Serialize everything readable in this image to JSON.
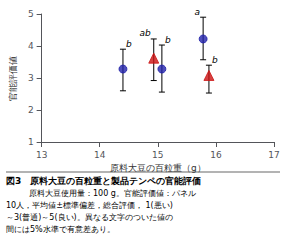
{
  "chart_data": {
    "type": "scatter",
    "title": "図3　原料大豆の百粒重と製品テンペの官能評価",
    "caption": [
      "原料大豆使用量：100 g。官能評価値：パネル",
      "10人，平均値±標準偏差，総合評価， 1(悪い)",
      "～3(普通)～5(良い)。異なる文字のついた値の",
      "間には5%水準で有意差あり。"
    ],
    "xlabel": "原料大豆の百粒重（g）",
    "ylabel": "官能評価値",
    "xlim": [
      13,
      17
    ],
    "ylim": [
      1,
      5
    ],
    "xticks": [
      13,
      14,
      15,
      16,
      17
    ],
    "yticks": [
      1,
      2,
      3,
      4,
      5
    ],
    "grid": false,
    "points": [
      {
        "x": 14.4,
        "y": 3.28,
        "yerr_up": 0.62,
        "yerr_down": 0.68,
        "marker": "circle",
        "color": "#2222aa",
        "label": "b"
      },
      {
        "x": 14.93,
        "y": 3.62,
        "yerr_up": 0.6,
        "yerr_down": 0.7,
        "marker": "triangle",
        "color": "#cc1111",
        "label": "ab"
      },
      {
        "x": 15.07,
        "y": 3.28,
        "yerr_up": 0.75,
        "yerr_down": 0.72,
        "marker": "circle",
        "color": "#2222aa",
        "label": "b"
      },
      {
        "x": 15.78,
        "y": 4.22,
        "yerr_up": 0.68,
        "yerr_down": 0.65,
        "marker": "circle",
        "color": "#2222aa",
        "label": "a"
      },
      {
        "x": 15.88,
        "y": 3.08,
        "yerr_up": 0.32,
        "yerr_down": 0.55,
        "marker": "triangle",
        "color": "#cc1111",
        "label": "b"
      }
    ]
  }
}
